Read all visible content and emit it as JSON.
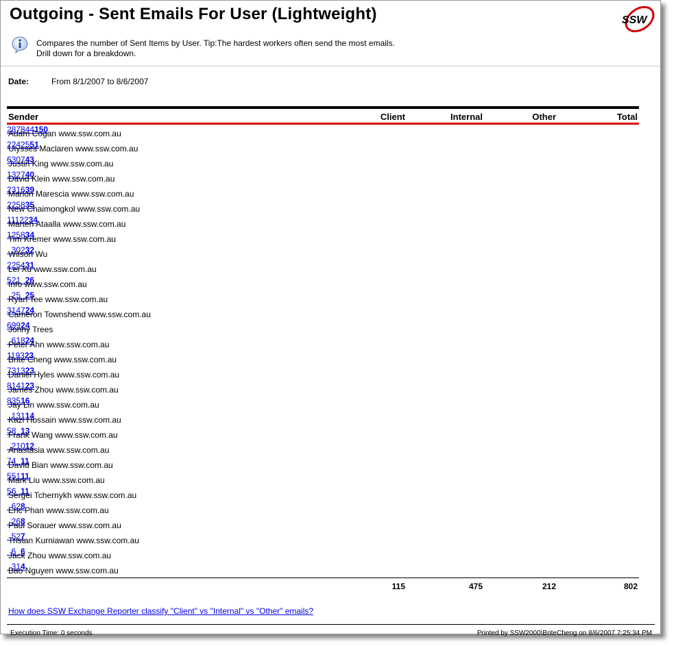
{
  "header": {
    "title": "Outgoing - Sent Emails For User (Lightweight)",
    "logo_text": "SSW",
    "description_line1": "Compares the number of Sent Items by User. Tip:The hardest workers often send the most emails.",
    "description_line2": "Drill down for a breakdown."
  },
  "date": {
    "label": "Date:",
    "value": "From 8/1/2007 to 8/6/2007"
  },
  "table": {
    "columns": {
      "sender": "Sender",
      "client": "Client",
      "internal": "Internal",
      "other": "Other",
      "total": "Total"
    },
    "rows": [
      {
        "sender": "Adam Cogan www.ssw.com.au",
        "client": "28",
        "internal": "78",
        "other": "44",
        "total": "150"
      },
      {
        "sender": "Ulysses Maclaren www.ssw.com.au",
        "client": "2",
        "internal": "24",
        "other": "25",
        "total": "51"
      },
      {
        "sender": "Justin King www.ssw.com.au",
        "client": "6",
        "internal": "30",
        "other": "7",
        "total": "43"
      },
      {
        "sender": "David Klein www.ssw.com.au",
        "client": "1",
        "internal": "32",
        "other": "7",
        "total": "40"
      },
      {
        "sender": "Marlon Marescia www.ssw.com.au",
        "client": "2",
        "internal": "31",
        "other": "6",
        "total": "39"
      },
      {
        "sender": "New Chaimongkol www.ssw.com.au",
        "client": "2",
        "internal": "25",
        "other": "8",
        "total": "35"
      },
      {
        "sender": "Marten Ataalla www.ssw.com.au",
        "client": "1",
        "internal": "11",
        "other": "22",
        "total": "34"
      },
      {
        "sender": "Tim Kremer www.ssw.com.au",
        "client": "1",
        "internal": "25",
        "other": "8",
        "total": "34"
      },
      {
        "sender": "Wilson Wu",
        "client": "",
        "internal": "30",
        "other": "2",
        "total": "32"
      },
      {
        "sender": "Lei Xu www.ssw.com.au",
        "client": "2",
        "internal": "25",
        "other": "4",
        "total": "31"
      },
      {
        "sender": "Info www.ssw.com.au",
        "client": "5",
        "internal": "21",
        "other": "",
        "total": "26"
      },
      {
        "sender": "Ryan Tee www.ssw.com.au",
        "client": "",
        "internal": "25",
        "other": "",
        "total": "25"
      },
      {
        "sender": "Cameron Townshend www.ssw.com.au",
        "client": "3",
        "internal": "14",
        "other": "7",
        "total": "24"
      },
      {
        "sender": "Jonny Trees",
        "client": "6",
        "internal": "9",
        "other": "9",
        "total": "24"
      },
      {
        "sender": "Peter Ahn www.ssw.com.au",
        "client": "",
        "internal": "6",
        "other": "18",
        "total": "24"
      },
      {
        "sender": "Brite Cheng www.ssw.com.au",
        "client": "11",
        "internal": "9",
        "other": "3",
        "total": "23"
      },
      {
        "sender": "Daniel Hyles www.ssw.com.au",
        "client": "7",
        "internal": "3",
        "other": "13",
        "total": "23"
      },
      {
        "sender": "James Zhou www.ssw.com.au",
        "client": "8",
        "internal": "14",
        "other": "1",
        "total": "23"
      },
      {
        "sender": "Jay Lin www.ssw.com.au",
        "client": "8",
        "internal": "3",
        "other": "5",
        "total": "16"
      },
      {
        "sender": "Kazi Hossain www.ssw.com.au",
        "client": "",
        "internal": "13",
        "other": "1",
        "total": "14"
      },
      {
        "sender": "Frank Wang www.ssw.com.au",
        "client": "5",
        "internal": "8",
        "other": "",
        "total": "13"
      },
      {
        "sender": "Anastasia www.ssw.com.au",
        "client": "",
        "internal": "2",
        "other": "10",
        "total": "12"
      },
      {
        "sender": "David Bian www.ssw.com.au",
        "client": "7",
        "internal": "4",
        "other": "",
        "total": "11"
      },
      {
        "sender": "Mark Liu www.ssw.com.au",
        "client": "5",
        "internal": "5",
        "other": "1",
        "total": "11"
      },
      {
        "sender": "Sergei Tchernykh www.ssw.com.au",
        "client": "5",
        "internal": "6",
        "other": "",
        "total": "11"
      },
      {
        "sender": "Eric Phan www.ssw.com.au",
        "client": "",
        "internal": "6",
        "other": "2",
        "total": "8"
      },
      {
        "sender": "Paul Sorauer www.ssw.com.au",
        "client": "",
        "internal": "2",
        "other": "6",
        "total": "8"
      },
      {
        "sender": "Tristan Kurniawan www.ssw.com.au",
        "client": "",
        "internal": "5",
        "other": "2",
        "total": "7"
      },
      {
        "sender": "Jack Zhou www.ssw.com.au",
        "client": "",
        "internal": "6",
        "other": "",
        "total": "6"
      },
      {
        "sender": "Bao Nguyen www.ssw.com.au",
        "client": "",
        "internal": "3",
        "other": "1",
        "total": "4"
      }
    ],
    "totals": {
      "client": "115",
      "internal": "475",
      "other": "212",
      "total": "802"
    }
  },
  "footer": {
    "classify_link": "How does SSW Exchange Reporter classify \"Client\" vs \"Internal\" vs \"Other\" emails?",
    "execution_time": "Execution Time: 0 seconds",
    "printed_by": "Printed by SSW2000\\BriteCheng on 8/6/2007 7:25:34 PM"
  },
  "colors": {
    "link": "#0000ee",
    "header_rule": "#e00000",
    "table_rule": "#000000"
  },
  "icons": {
    "info": "info-icon",
    "logo": "ssw-logo"
  }
}
